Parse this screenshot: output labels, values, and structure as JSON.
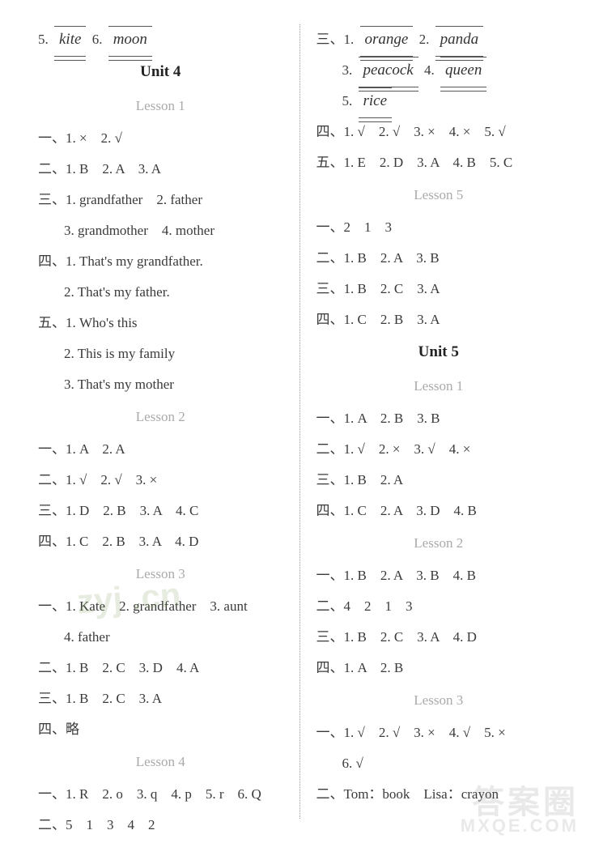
{
  "left": {
    "top_line_prefix": "5.",
    "top_blank1": "kite",
    "top_line_mid": "6.",
    "top_blank2": "moon",
    "unit4": "Unit 4",
    "l1": {
      "title": "Lesson 1",
      "r1": "一、1. ×　2. √",
      "r2": "二、1. B　2. A　3. A",
      "r3": "三、1. grandfather　2. father",
      "r4": "3. grandmother　4. mother",
      "r5": "四、1. That's my grandfather.",
      "r6": "2. That's my father.",
      "r7": "五、1. Who's this",
      "r8": "2. This is my family",
      "r9": "3. That's my mother"
    },
    "l2": {
      "title": "Lesson 2",
      "r1": "一、1. A　2. A",
      "r2": "二、1. √　2. √　3. ×",
      "r3": "三、1. D　2. B　3. A　4. C",
      "r4": "四、1. C　2. B　3. A　4. D"
    },
    "l3": {
      "title": "Lesson 3",
      "r1": "一、1. Kate　2. grandfather　3. aunt",
      "r2": "4. father",
      "r3": "二、1. B　2. C　3. D　4. A",
      "r4": "三、1. B　2. C　3. A",
      "r5": "四、略"
    },
    "l4": {
      "title": "Lesson 4",
      "r1": "一、1. R　2. o　3. q　4. p　5. r　6. Q",
      "r2": "二、5　1　3　4　2"
    }
  },
  "right": {
    "top": {
      "p1": "三、1.",
      "b1": "orange",
      "p2": "2.",
      "b2": "panda",
      "p3": "3.",
      "b3": "peacock",
      "p4": "4.",
      "b4": "queen",
      "p5": "5.",
      "b5": "rice"
    },
    "r1": "四、1. √　2. √　3. ×　4. ×　5. √",
    "r2": "五、1. E　2. D　3. A　4. B　5. C",
    "l5": {
      "title": "Lesson 5",
      "r1": "一、2　1　3",
      "r2": "二、1. B　2. A　3. B",
      "r3": "三、1. B　2. C　3. A",
      "r4": "四、1. C　2. B　3. A"
    },
    "unit5": "Unit 5",
    "u5l1": {
      "title": "Lesson 1",
      "r1": "一、1. A　2. B　3. B",
      "r2": "二、1. √　2. ×　3. √　4. ×",
      "r3": "三、1. B　2. A",
      "r4": "四、1. C　2. A　3. D　4. B"
    },
    "u5l2": {
      "title": "Lesson 2",
      "r1": "一、1. B　2. A　3. B　4. B",
      "r2": "二、4　2　1　3",
      "r3": "三、1. B　2. C　3. A　4. D",
      "r4": "四、1. A　2. B"
    },
    "u5l3": {
      "title": "Lesson 3",
      "r1": "一、1. √　2. √　3. ×　4. √　5. ×",
      "r2": "6. √",
      "r3": "二、Tom：book　Lisa：crayon"
    }
  },
  "wm": {
    "w1": "zyj .cn",
    "w2": "答案圈",
    "w3": "MXQE.COM"
  }
}
